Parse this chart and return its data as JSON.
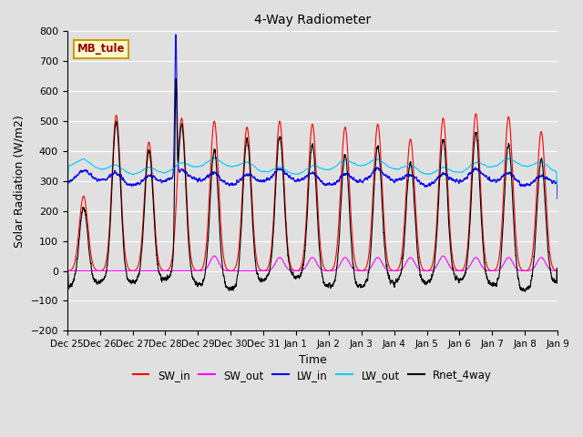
{
  "title": "4-Way Radiometer",
  "xlabel": "Time",
  "ylabel": "Solar Radiation (W/m2)",
  "ylim": [
    -200,
    800
  ],
  "yticks": [
    -200,
    -100,
    0,
    100,
    200,
    300,
    400,
    500,
    600,
    700,
    800
  ],
  "bg_color": "#e0e0e0",
  "plot_bg_color": "#e0e0e0",
  "grid_color": "#ffffff",
  "label_box_text": "MB_tule",
  "label_box_bg": "#ffffcc",
  "label_box_edge": "#cc9900",
  "label_box_text_color": "#990000",
  "series_colors": {
    "SW_in": "#ff0000",
    "SW_out": "#ff00ff",
    "LW_in": "#0000ff",
    "LW_out": "#00ccff",
    "Rnet_4way": "#000000"
  },
  "x_tick_labels": [
    "Dec 25",
    "Dec 26",
    "Dec 27",
    "Dec 28",
    "Dec 29",
    "Dec 30",
    "Dec 31",
    "Jan 1",
    "Jan 2",
    "Jan 3",
    "Jan 4",
    "Jan 5",
    "Jan 6",
    "Jan 7",
    "Jan 8",
    "Jan 9"
  ],
  "n_days": 15
}
